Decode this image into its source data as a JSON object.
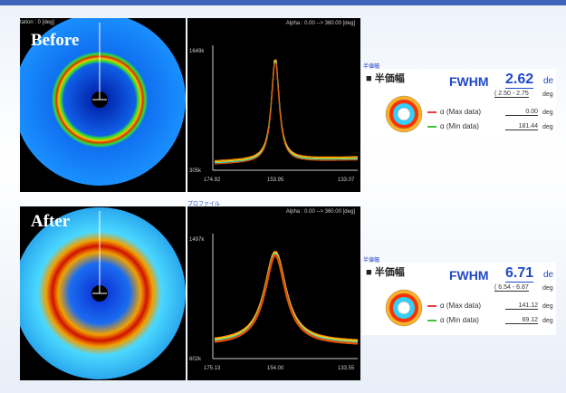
{
  "panels": [
    {
      "label": "Before",
      "rotation_label": "tation : 0 [deg]",
      "profile": {
        "header": "Alpha : 0.00 --> 360.00 [deg]",
        "y_top": "1649k",
        "y_bottom": "305k",
        "x_left": "174.92",
        "x_mid": "153.95",
        "x_right": "133.07"
      },
      "result": {
        "section": "半値幅",
        "heading": "■ 半価幅",
        "fwhm_label": "FWHM",
        "fwhm_value": "2.62",
        "unit": "de",
        "range": "( 2.50 - 2.75",
        "range_unit": "deg",
        "max_label": "α (Max data)",
        "max_value": "0.00",
        "max_unit": "deg",
        "min_label": "α (Min data)",
        "min_value": "181.44",
        "min_unit": "deg"
      }
    },
    {
      "label": "After",
      "tab": "プロファイル",
      "profile": {
        "header": "Alpha : 0.00 --> 360.00 [deg]",
        "y_top": "1497k",
        "y_bottom": "602k",
        "x_left": "175.13",
        "x_mid": "154.00",
        "x_right": "133.55"
      },
      "result": {
        "section": "半値幅",
        "heading": "■ 半価幅",
        "fwhm_label": "FWHM",
        "fwhm_value": "6.71",
        "unit": "de",
        "range": "( 6.54 - 6.87",
        "range_unit": "deg",
        "max_label": "α (Max data)",
        "max_value": "141.12",
        "max_unit": "deg",
        "min_label": "α (Min data)",
        "min_value": "69.12",
        "min_unit": "deg"
      }
    }
  ]
}
